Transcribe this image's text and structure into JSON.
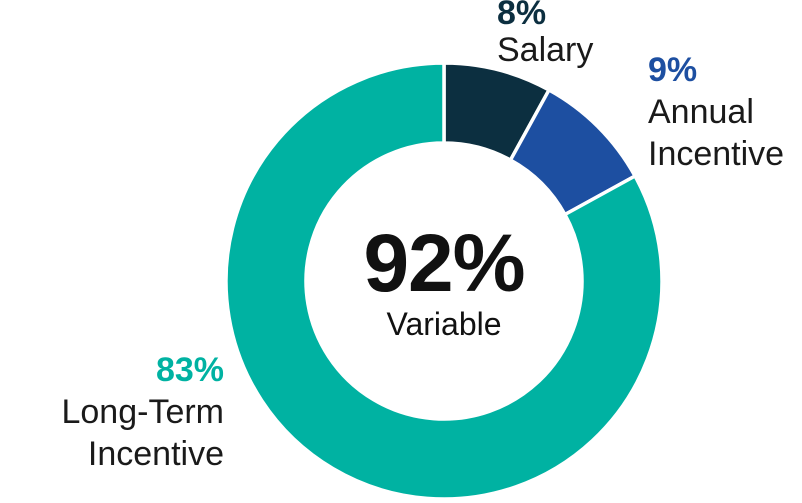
{
  "chart_data": {
    "type": "pie",
    "donut": true,
    "title": "",
    "start_angle_deg": 0,
    "direction": "clockwise",
    "background": "#FFFFFF",
    "separator_color": "#FFFFFF",
    "center_label": {
      "value": "92%",
      "label": "Variable"
    },
    "slices": [
      {
        "name": "Salary",
        "value": 8,
        "pct_label": "8%",
        "color": "#0C2F40"
      },
      {
        "name": "Annual Incentive",
        "value": 9,
        "pct_label": "9%",
        "color": "#1D4FA1"
      },
      {
        "name": "Long-Term Incentive",
        "value": 83,
        "pct_label": "83%",
        "color": "#00B2A2"
      }
    ]
  }
}
